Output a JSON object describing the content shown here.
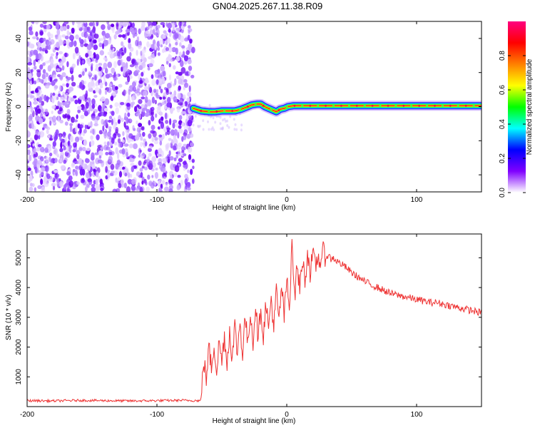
{
  "title": "GN04.2025.267.11.38.R09",
  "chart_data": [
    {
      "type": "heatmap",
      "title": "",
      "xlabel": "Height of straight line (km)",
      "ylabel": "Frequency (Hz)",
      "xlim": [
        -200,
        150
      ],
      "ylim": [
        -50,
        50
      ],
      "xticks": [
        -200,
        -100,
        0,
        100
      ],
      "yticks": [
        -40,
        -20,
        0,
        20,
        40
      ],
      "noise_region_x": [
        -200,
        -72
      ],
      "signal_start_x": -72,
      "signal_trace": {
        "x": [
          -72,
          -66,
          -60,
          -55,
          -50,
          -45,
          -40,
          -35,
          -30,
          -27,
          -23,
          -20,
          -17,
          -14,
          -11,
          -8,
          -5,
          -2,
          1,
          5,
          10,
          50,
          100,
          150
        ],
        "freq_hz": [
          -1,
          -2.5,
          -3,
          -3,
          -2.5,
          -2.5,
          -2.5,
          -1.5,
          0,
          1,
          1.5,
          1.5,
          0,
          -1,
          -2,
          -3,
          -1.5,
          -1,
          0,
          0.5,
          0.5,
          0.5,
          0.5,
          0.5
        ]
      },
      "colorbar": {
        "label": "Normalized spectral amplitude",
        "range": [
          0,
          1
        ],
        "ticks": [
          0.0,
          0.2,
          0.4,
          0.6,
          0.8
        ],
        "tick_labels": [
          "0.0",
          "0.2",
          "0.4",
          "0.6",
          "0.8"
        ],
        "colormap": [
          "#ffffff",
          "#8000ff",
          "#0000ff",
          "#00ffff",
          "#00ff00",
          "#ffff00",
          "#ff8000",
          "#ff0000",
          "#ff0080"
        ]
      }
    },
    {
      "type": "line",
      "title": "",
      "xlabel": "Height of straight line (km)",
      "ylabel": "SNR (10 * v/v)",
      "xlim": [
        -200,
        150
      ],
      "ylim": [
        0,
        5800
      ],
      "xticks": [
        -200,
        -100,
        0,
        100
      ],
      "yticks": [
        1000,
        2000,
        3000,
        4000,
        5000
      ],
      "series": [
        {
          "name": "SNR",
          "color": "#ee3333",
          "x": [
            -200,
            -180,
            -160,
            -140,
            -120,
            -100,
            -80,
            -66,
            -64,
            -62,
            -60,
            -58,
            -56,
            -54,
            -52,
            -50,
            -48,
            -46,
            -44,
            -42,
            -40,
            -38,
            -36,
            -34,
            -32,
            -30,
            -28,
            -26,
            -24,
            -22,
            -20,
            -18,
            -16,
            -14,
            -12,
            -10,
            -8,
            -6,
            -4,
            -2,
            0,
            2,
            4,
            6,
            8,
            10,
            12,
            14,
            16,
            18,
            20,
            22,
            24,
            26,
            28,
            30,
            32,
            34,
            36,
            38,
            40,
            45,
            50,
            55,
            60,
            65,
            70,
            75,
            80,
            85,
            90,
            95,
            100,
            105,
            110,
            115,
            120,
            125,
            130,
            135,
            140,
            145,
            150
          ],
          "values": [
            200,
            190,
            210,
            200,
            190,
            200,
            210,
            200,
            1600,
            900,
            2000,
            1300,
            2100,
            1200,
            2200,
            1500,
            2400,
            1400,
            2600,
            1600,
            2700,
            1800,
            2900,
            1700,
            3100,
            2000,
            3300,
            2100,
            3500,
            2200,
            3400,
            2300,
            3600,
            2500,
            3700,
            2600,
            3900,
            2800,
            4100,
            3000,
            4300,
            3200,
            5800,
            3600,
            4800,
            3900,
            5000,
            4200,
            5200,
            4500,
            5100,
            4700,
            5000,
            4900,
            5200,
            5000,
            5100,
            4950,
            5000,
            4900,
            4850,
            4700,
            4500,
            4350,
            4200,
            4100,
            4000,
            3900,
            3800,
            3750,
            3700,
            3650,
            3600,
            3550,
            3500,
            3500,
            3450,
            3400,
            3350,
            3300,
            3250,
            3200,
            3150
          ]
        }
      ]
    }
  ]
}
